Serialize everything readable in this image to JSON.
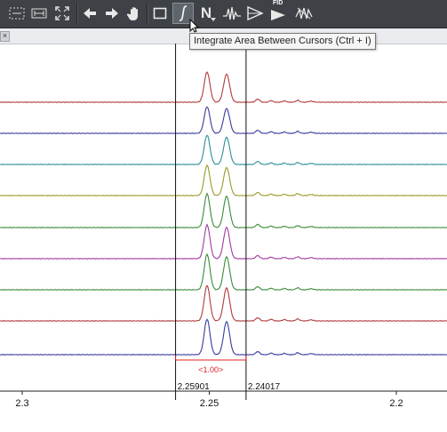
{
  "toolbar": {
    "buttons": [
      {
        "name": "select-region-icon"
      },
      {
        "name": "baseline-icon"
      },
      {
        "name": "fit-to-window-icon"
      },
      {
        "name": "back-arrow-icon"
      },
      {
        "name": "forward-arrow-icon"
      },
      {
        "name": "pan-hand-icon"
      },
      {
        "name": "rectangle-zoom-icon"
      },
      {
        "name": "integral-icon"
      },
      {
        "name": "normalize-icon",
        "label": "N"
      },
      {
        "name": "peak-picking-icon"
      },
      {
        "name": "phase-icon"
      },
      {
        "name": "fid-icon",
        "label": "FID"
      },
      {
        "name": "multiplet-icon"
      }
    ]
  },
  "tooltip": {
    "text": "Integrate Area Between Cursors  (Ctrl + I)"
  },
  "close_tab": {
    "label": "×"
  },
  "plot": {
    "cursors": [
      {
        "ppm": 2.25901,
        "label": "2.25901"
      },
      {
        "ppm": 2.24017,
        "label": "2.24017"
      }
    ],
    "integral_label": "<1.00>",
    "axis_ticks": [
      {
        "ppm": 2.3,
        "label": "2.3"
      },
      {
        "ppm": 2.25,
        "label": "2.25"
      },
      {
        "ppm": 2.2,
        "label": "2.2"
      }
    ],
    "spectrum_colors": [
      "#b03a3a",
      "#3a3aa0",
      "#2a8f9a",
      "#9a9a2a",
      "#3a8a3a",
      "#a03aa0",
      "#3a8a3a",
      "#b03a3a",
      "#3a3aa0"
    ],
    "colors": {
      "toolbar_bg": "#3e4145",
      "cursor_line": "#111111",
      "integral": "#e02020"
    }
  }
}
